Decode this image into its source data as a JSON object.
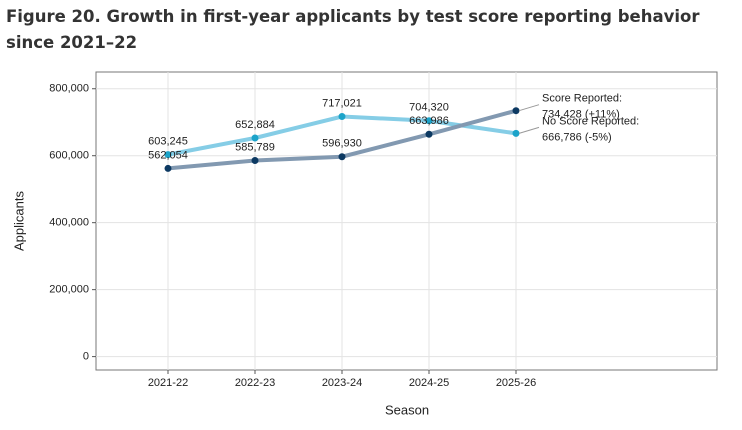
{
  "chart_data": {
    "type": "line",
    "title": "Figure 20. Growth in first-year applicants by test score reporting behavior since 2021–22",
    "x_label": "Season",
    "y_label": "Applicants",
    "categories": [
      "2021-22",
      "2022-23",
      "2023-24",
      "2024-25",
      "2025-26"
    ],
    "series": [
      {
        "name": "No Score Reported:",
        "color": "#85cde6",
        "point_color": "#1ba3c9",
        "values": [
          603245,
          652884,
          717021,
          704320,
          666786
        ],
        "value_labels": [
          "603,245",
          "652,884",
          "717,021",
          "704,320",
          "666,786 (-5%)"
        ]
      },
      {
        "name": "Score Reported:",
        "color": "#8299b1",
        "point_color": "#0c3962",
        "values": [
          562054,
          585789,
          596930,
          663986,
          734428
        ],
        "value_labels": [
          "562,054",
          "585,789",
          "596,930",
          "663,986",
          "734,428 (+11%)"
        ]
      }
    ],
    "ylim": [
      -40000,
      850000
    ],
    "yticks": [
      0,
      {
        "value": 200000,
        "label": "200,000"
      },
      {
        "value": 400000,
        "label": "400,000"
      },
      {
        "value": 600000,
        "label": "600,000"
      },
      {
        "value": 800000,
        "label": "800,000"
      }
    ],
    "grid": true
  }
}
